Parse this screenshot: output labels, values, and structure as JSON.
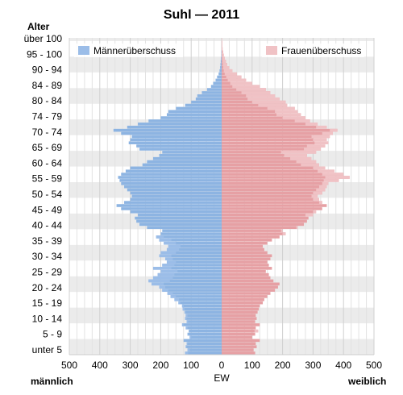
{
  "chart_data": {
    "type": "bar",
    "title": "Suhl — 2011",
    "y_axis_title": "Alter",
    "x_axis_title": "EW",
    "left_side_label": "männlich",
    "right_side_label": "weiblich",
    "xlim": [
      -500,
      500
    ],
    "x_ticks": [
      500,
      400,
      300,
      200,
      100,
      0,
      100,
      200,
      300,
      400,
      500
    ],
    "age_labels": [
      "über 100",
      "95 - 100",
      "90 - 94",
      "84 - 89",
      "80 - 84",
      "74 - 79",
      "70 - 74",
      "65 - 69",
      "60 - 64",
      "55 - 59",
      "50 - 54",
      "45 - 49",
      "40 - 44",
      "35 - 39",
      "30 - 34",
      "25 - 29",
      "20 - 24",
      "15 - 19",
      "10 - 14",
      "5 - 9",
      "unter 5"
    ],
    "legend": [
      "Männerüberschuss",
      "Frauenüberschuss"
    ],
    "colors": {
      "male": "#8db4e2",
      "female": "#e6a0a4",
      "male_surplus": "#9bbde8",
      "female_surplus": "#f0c2c5",
      "band": "#ebebeb"
    },
    "ages": [
      0,
      1,
      2,
      3,
      4,
      5,
      6,
      7,
      8,
      9,
      10,
      11,
      12,
      13,
      14,
      15,
      16,
      17,
      18,
      19,
      20,
      21,
      22,
      23,
      24,
      25,
      26,
      27,
      28,
      29,
      30,
      31,
      32,
      33,
      34,
      35,
      36,
      37,
      38,
      39,
      40,
      41,
      42,
      43,
      44,
      45,
      46,
      47,
      48,
      49,
      50,
      51,
      52,
      53,
      54,
      55,
      56,
      57,
      58,
      59,
      60,
      61,
      62,
      63,
      64,
      65,
      66,
      67,
      68,
      69,
      70,
      71,
      72,
      73,
      74,
      75,
      76,
      77,
      78,
      79,
      80,
      81,
      82,
      83,
      84,
      85,
      86,
      87,
      88,
      89,
      90,
      91,
      92,
      93,
      94,
      95,
      96,
      97,
      98,
      99,
      100
    ],
    "series": [
      {
        "name": "männlich",
        "values": [
          120,
          112,
          118,
          115,
          125,
          105,
          112,
          108,
          118,
          130,
          115,
          120,
          118,
          122,
          128,
          130,
          142,
          155,
          168,
          178,
          195,
          205,
          230,
          240,
          225,
          210,
          200,
          225,
          195,
          180,
          185,
          205,
          200,
          180,
          175,
          190,
          205,
          215,
          200,
          195,
          245,
          270,
          280,
          285,
          275,
          300,
          330,
          345,
          320,
          300,
          295,
          300,
          310,
          320,
          330,
          335,
          340,
          330,
          315,
          300,
          260,
          245,
          225,
          205,
          195,
          270,
          280,
          305,
          300,
          295,
          330,
          355,
          310,
          275,
          240,
          200,
          180,
          175,
          150,
          120,
          100,
          85,
          80,
          65,
          48,
          35,
          28,
          20,
          15,
          10,
          7,
          5,
          4,
          3,
          2,
          1,
          1,
          0,
          0,
          0,
          0
        ]
      },
      {
        "name": "weiblich",
        "values": [
          110,
          105,
          115,
          112,
          125,
          100,
          110,
          120,
          112,
          125,
          110,
          115,
          112,
          118,
          122,
          125,
          135,
          140,
          150,
          160,
          175,
          185,
          190,
          170,
          160,
          155,
          145,
          165,
          155,
          150,
          160,
          165,
          150,
          140,
          135,
          150,
          165,
          190,
          210,
          200,
          250,
          270,
          280,
          285,
          300,
          310,
          330,
          345,
          330,
          320,
          315,
          330,
          340,
          345,
          350,
          385,
          420,
          400,
          370,
          340,
          320,
          310,
          295,
          280,
          310,
          325,
          340,
          350,
          345,
          355,
          365,
          380,
          345,
          315,
          290,
          275,
          260,
          250,
          240,
          215,
          210,
          190,
          175,
          160,
          145,
          125,
          100,
          80,
          65,
          50,
          35,
          25,
          18,
          14,
          10,
          7,
          5,
          3,
          2,
          2,
          1
        ]
      },
      {
        "name": "Männerüberschuss",
        "values": [
          10,
          7,
          3,
          3,
          0,
          5,
          2,
          0,
          6,
          5,
          5,
          5,
          6,
          4,
          6,
          5,
          7,
          15,
          18,
          18,
          20,
          20,
          40,
          70,
          65,
          55,
          55,
          60,
          40,
          30,
          25,
          40,
          50,
          40,
          40,
          40,
          40,
          25,
          0,
          0,
          0,
          0,
          0,
          0,
          0,
          0,
          0,
          0,
          0,
          0,
          0,
          0,
          0,
          0,
          0,
          0,
          0,
          0,
          0,
          0,
          0,
          0,
          0,
          0,
          0,
          0,
          0,
          0,
          0,
          0,
          0,
          0,
          0,
          0,
          0,
          0,
          0,
          0,
          0,
          0,
          0,
          0,
          0,
          0,
          0,
          0,
          0,
          0,
          0,
          0,
          0,
          0,
          0,
          0,
          0,
          0,
          0,
          0,
          0,
          0,
          0
        ]
      },
      {
        "name": "Frauenüberschuss",
        "values": [
          0,
          0,
          0,
          0,
          0,
          0,
          0,
          12,
          0,
          0,
          0,
          0,
          0,
          0,
          0,
          0,
          0,
          0,
          0,
          0,
          0,
          0,
          0,
          0,
          0,
          0,
          0,
          0,
          0,
          0,
          0,
          0,
          0,
          0,
          0,
          0,
          0,
          0,
          10,
          5,
          5,
          0,
          0,
          0,
          25,
          10,
          0,
          0,
          10,
          20,
          20,
          30,
          30,
          25,
          20,
          50,
          80,
          70,
          55,
          40,
          60,
          65,
          70,
          75,
          115,
          55,
          60,
          45,
          45,
          60,
          35,
          25,
          35,
          40,
          50,
          75,
          80,
          75,
          90,
          95,
          110,
          105,
          95,
          95,
          97,
          90,
          72,
          60,
          50,
          40,
          28,
          20,
          14,
          11,
          8,
          6,
          4,
          3,
          2,
          2,
          1
        ]
      }
    ]
  }
}
